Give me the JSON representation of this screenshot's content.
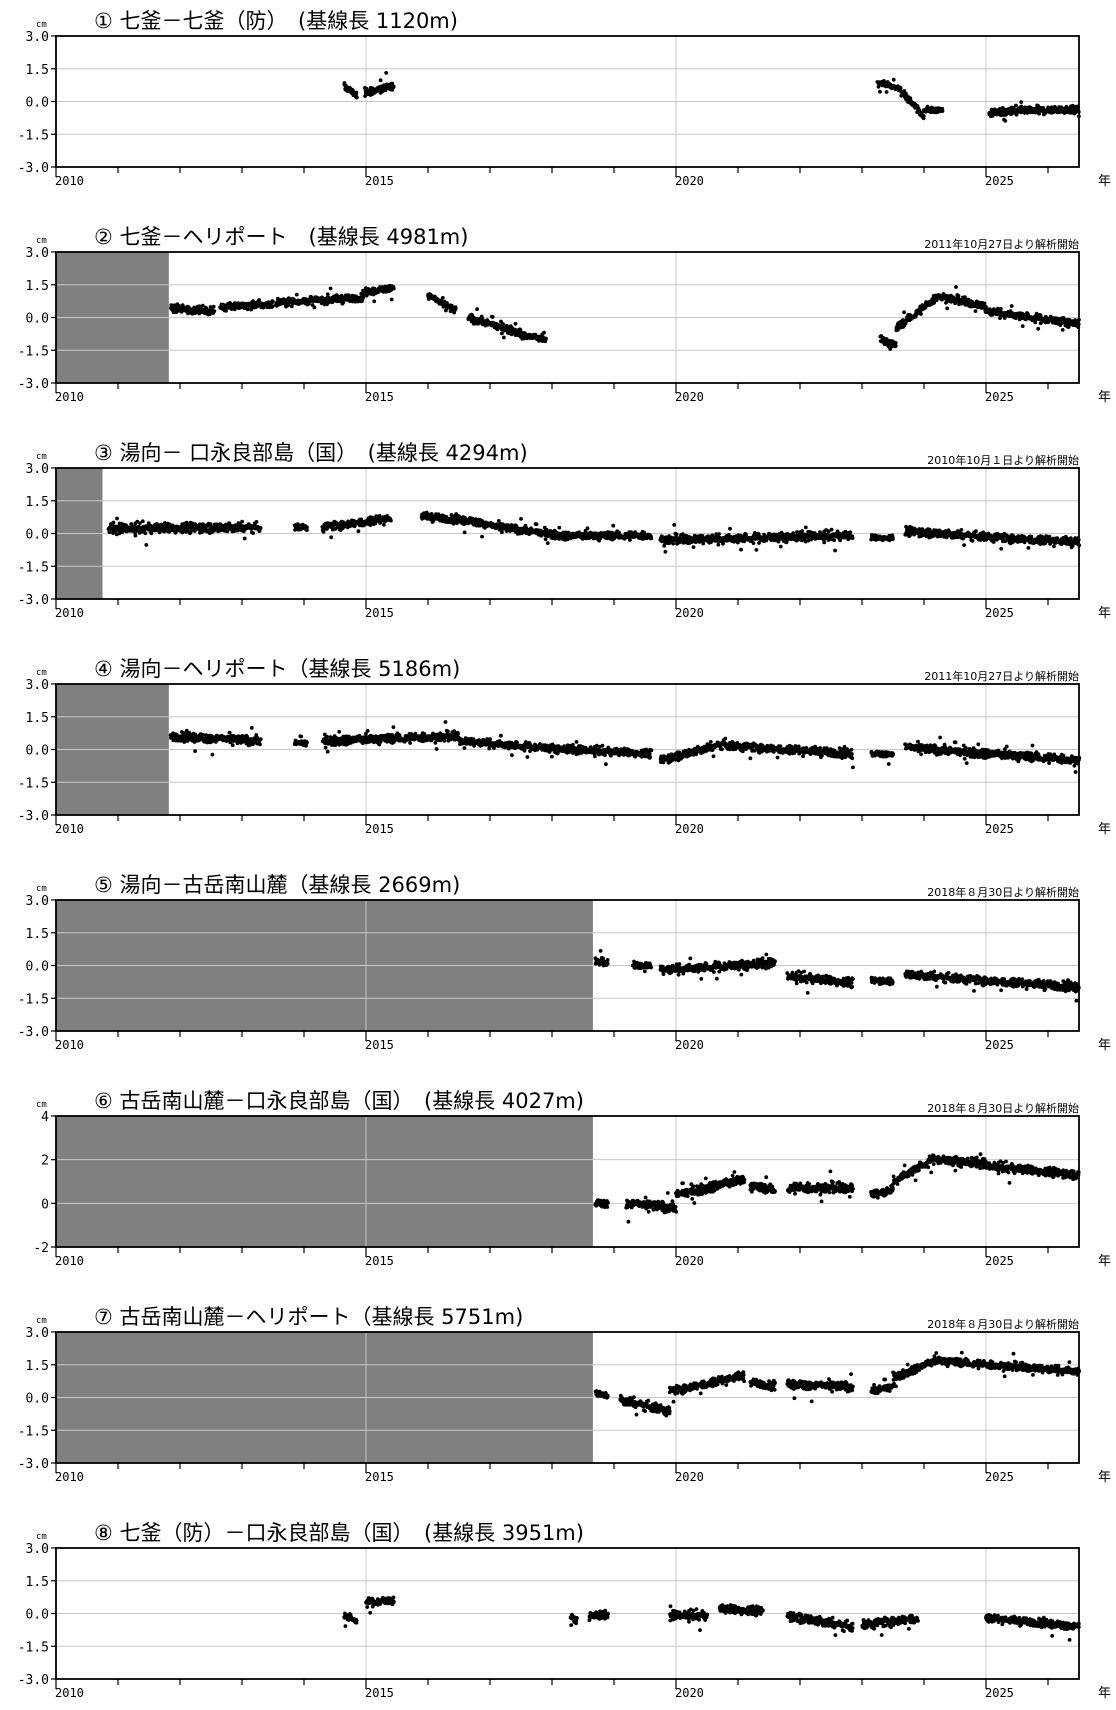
{
  "chart_data": [
    {
      "type": "scatter",
      "title": "① 七釜－七釜（防）　(基線長 1120m)",
      "note": "",
      "unit": "cm",
      "xlabel": "年",
      "x_ticks": [
        "2010",
        "2015",
        "2020",
        "2025"
      ],
      "xlim": [
        2010,
        2026.5
      ],
      "ylim": [
        -3.0,
        3.0
      ],
      "y_ticks": [
        "3.0",
        "1.5",
        "0.0",
        "-1.5",
        "-3.0"
      ],
      "shaded_until": null,
      "segments": [
        {
          "x": [
            2014.65,
            2014.85
          ],
          "y": [
            0.7,
            0.3
          ],
          "spread": 0.3
        },
        {
          "x": [
            2014.98,
            2015.45
          ],
          "y": [
            0.4,
            0.7
          ],
          "spread": 0.35
        },
        {
          "x": [
            2023.25,
            2023.6
          ],
          "y": [
            0.9,
            0.6
          ],
          "spread": 0.25
        },
        {
          "x": [
            2023.6,
            2024.0
          ],
          "y": [
            0.6,
            -0.7
          ],
          "spread": 0.3
        },
        {
          "x": [
            2024.0,
            2024.3
          ],
          "y": [
            -0.4,
            -0.4
          ],
          "spread": 0.25
        },
        {
          "x": [
            2025.05,
            2026.5
          ],
          "y": [
            -0.5,
            -0.35
          ],
          "spread": 0.35
        }
      ]
    },
    {
      "type": "scatter",
      "title": "② 七釜－ヘリポート　(基線長 4981m)",
      "note": "2011年10月27日より解析開始",
      "unit": "cm",
      "xlabel": "年",
      "x_ticks": [
        "2010",
        "2015",
        "2020",
        "2025"
      ],
      "xlim": [
        2010,
        2026.5
      ],
      "ylim": [
        -3.0,
        3.0
      ],
      "y_ticks": [
        "3.0",
        "1.5",
        "0.0",
        "-1.5",
        "-3.0"
      ],
      "shaded_until": 2011.82,
      "segments": [
        {
          "x": [
            2011.85,
            2012.55
          ],
          "y": [
            0.4,
            0.3
          ],
          "spread": 0.35
        },
        {
          "x": [
            2012.65,
            2013.5
          ],
          "y": [
            0.5,
            0.6
          ],
          "spread": 0.35
        },
        {
          "x": [
            2013.55,
            2014.95
          ],
          "y": [
            0.7,
            0.9
          ],
          "spread": 0.35
        },
        {
          "x": [
            2014.95,
            2015.45
          ],
          "y": [
            1.1,
            1.4
          ],
          "spread": 0.3
        },
        {
          "x": [
            2016.0,
            2016.45
          ],
          "y": [
            1.0,
            0.3
          ],
          "spread": 0.35
        },
        {
          "x": [
            2016.65,
            2017.5
          ],
          "y": [
            0.0,
            -0.7
          ],
          "spread": 0.35
        },
        {
          "x": [
            2017.5,
            2017.9
          ],
          "y": [
            -0.8,
            -1.0
          ],
          "spread": 0.3
        },
        {
          "x": [
            2023.3,
            2023.55
          ],
          "y": [
            -1.0,
            -1.3
          ],
          "spread": 0.4
        },
        {
          "x": [
            2023.55,
            2024.2
          ],
          "y": [
            -0.5,
            0.9
          ],
          "spread": 0.35
        },
        {
          "x": [
            2024.2,
            2025.0
          ],
          "y": [
            1.0,
            0.5
          ],
          "spread": 0.35
        },
        {
          "x": [
            2025.0,
            2026.5
          ],
          "y": [
            0.3,
            -0.3
          ],
          "spread": 0.35
        }
      ]
    },
    {
      "type": "scatter",
      "title": "③ 湯向－ 口永良部島（国）　(基線長 4294m)",
      "note": "2010年10月１日より解析開始",
      "unit": "cm",
      "xlabel": "年",
      "x_ticks": [
        "2010",
        "2015",
        "2020",
        "2025"
      ],
      "xlim": [
        2010,
        2026.5
      ],
      "ylim": [
        -3.0,
        3.0
      ],
      "y_ticks": [
        "3.0",
        "1.5",
        "0.0",
        "-1.5",
        "-3.0"
      ],
      "shaded_until": 2010.75,
      "segments": [
        {
          "x": [
            2010.85,
            2013.3
          ],
          "y": [
            0.2,
            0.3
          ],
          "spread": 0.45
        },
        {
          "x": [
            2013.85,
            2014.05
          ],
          "y": [
            0.3,
            0.3
          ],
          "spread": 0.3
        },
        {
          "x": [
            2014.3,
            2015.4
          ],
          "y": [
            0.3,
            0.7
          ],
          "spread": 0.4
        },
        {
          "x": [
            2015.9,
            2016.9
          ],
          "y": [
            0.8,
            0.5
          ],
          "spread": 0.35
        },
        {
          "x": [
            2016.9,
            2018.2
          ],
          "y": [
            0.4,
            -0.1
          ],
          "spread": 0.35
        },
        {
          "x": [
            2018.2,
            2019.6
          ],
          "y": [
            -0.1,
            -0.1
          ],
          "spread": 0.35
        },
        {
          "x": [
            2019.75,
            2022.85
          ],
          "y": [
            -0.3,
            -0.1
          ],
          "spread": 0.4
        },
        {
          "x": [
            2023.15,
            2023.5
          ],
          "y": [
            -0.2,
            -0.2
          ],
          "spread": 0.25
        },
        {
          "x": [
            2023.7,
            2026.5
          ],
          "y": [
            0.1,
            -0.4
          ],
          "spread": 0.4
        }
      ]
    },
    {
      "type": "scatter",
      "title": "④ 湯向－ヘリポート（基線長 5186m)",
      "note": "2011年10月27日より解析開始",
      "unit": "cm",
      "xlabel": "年",
      "x_ticks": [
        "2010",
        "2015",
        "2020",
        "2025"
      ],
      "xlim": [
        2010,
        2026.5
      ],
      "ylim": [
        -3.0,
        3.0
      ],
      "y_ticks": [
        "3.0",
        "1.5",
        "0.0",
        "-1.5",
        "-3.0"
      ],
      "shaded_until": 2011.82,
      "segments": [
        {
          "x": [
            2011.85,
            2013.3
          ],
          "y": [
            0.6,
            0.4
          ],
          "spread": 0.4
        },
        {
          "x": [
            2013.85,
            2014.05
          ],
          "y": [
            0.3,
            0.3
          ],
          "spread": 0.3
        },
        {
          "x": [
            2014.3,
            2016.5
          ],
          "y": [
            0.4,
            0.6
          ],
          "spread": 0.4
        },
        {
          "x": [
            2016.5,
            2018.2
          ],
          "y": [
            0.4,
            0.0
          ],
          "spread": 0.35
        },
        {
          "x": [
            2018.2,
            2019.6
          ],
          "y": [
            0.0,
            -0.2
          ],
          "spread": 0.35
        },
        {
          "x": [
            2019.75,
            2020.8
          ],
          "y": [
            -0.5,
            0.3
          ],
          "spread": 0.4
        },
        {
          "x": [
            2020.8,
            2022.85
          ],
          "y": [
            0.2,
            -0.2
          ],
          "spread": 0.4
        },
        {
          "x": [
            2023.15,
            2023.5
          ],
          "y": [
            -0.2,
            -0.2
          ],
          "spread": 0.25
        },
        {
          "x": [
            2023.7,
            2026.5
          ],
          "y": [
            0.1,
            -0.5
          ],
          "spread": 0.4
        }
      ]
    },
    {
      "type": "scatter",
      "title": "⑤ 湯向－古岳南山麓（基線長 2669m)",
      "note": "2018年８月30日より解析開始",
      "unit": "cm",
      "xlabel": "年",
      "x_ticks": [
        "2010",
        "2015",
        "2020",
        "2025"
      ],
      "xlim": [
        2010,
        2026.5
      ],
      "ylim": [
        -3.0,
        3.0
      ],
      "y_ticks": [
        "3.0",
        "1.5",
        "0.0",
        "-1.5",
        "-3.0"
      ],
      "shaded_until": 2018.66,
      "segments": [
        {
          "x": [
            2018.7,
            2018.9
          ],
          "y": [
            0.2,
            0.1
          ],
          "spread": 0.3
        },
        {
          "x": [
            2019.3,
            2019.6
          ],
          "y": [
            0.0,
            0.0
          ],
          "spread": 0.3
        },
        {
          "x": [
            2019.75,
            2021.6
          ],
          "y": [
            -0.2,
            0.1
          ],
          "spread": 0.4
        },
        {
          "x": [
            2021.8,
            2022.85
          ],
          "y": [
            -0.5,
            -0.8
          ],
          "spread": 0.4
        },
        {
          "x": [
            2023.15,
            2023.5
          ],
          "y": [
            -0.7,
            -0.7
          ],
          "spread": 0.3
        },
        {
          "x": [
            2023.7,
            2026.5
          ],
          "y": [
            -0.4,
            -1.0
          ],
          "spread": 0.4
        }
      ]
    },
    {
      "type": "scatter",
      "title": "⑥ 古岳南山麓－口永良部島（国）　(基線長 4027m)",
      "note": "2018年８月30日より解析開始",
      "unit": "cm",
      "xlabel": "年",
      "x_ticks": [
        "2010",
        "2015",
        "2020",
        "2025"
      ],
      "xlim": [
        2010,
        2026.5
      ],
      "ylim": [
        -2,
        4
      ],
      "y_ticks": [
        "4",
        "2",
        "0",
        "-2"
      ],
      "shaded_until": 2018.66,
      "segments": [
        {
          "x": [
            2018.7,
            2018.9
          ],
          "y": [
            0.0,
            0.0
          ],
          "spread": 0.35
        },
        {
          "x": [
            2019.2,
            2020.0
          ],
          "y": [
            0.0,
            -0.2
          ],
          "spread": 0.45
        },
        {
          "x": [
            2020.0,
            2021.1
          ],
          "y": [
            0.4,
            1.1
          ],
          "spread": 0.45
        },
        {
          "x": [
            2021.2,
            2021.6
          ],
          "y": [
            0.8,
            0.6
          ],
          "spread": 0.4
        },
        {
          "x": [
            2021.8,
            2022.85
          ],
          "y": [
            0.7,
            0.7
          ],
          "spread": 0.45
        },
        {
          "x": [
            2023.15,
            2023.5
          ],
          "y": [
            0.4,
            0.6
          ],
          "spread": 0.4
        },
        {
          "x": [
            2023.5,
            2024.2
          ],
          "y": [
            1.0,
            2.1
          ],
          "spread": 0.4
        },
        {
          "x": [
            2024.2,
            2025.0
          ],
          "y": [
            2.0,
            1.8
          ],
          "spread": 0.4
        },
        {
          "x": [
            2025.0,
            2026.5
          ],
          "y": [
            1.7,
            1.3
          ],
          "spread": 0.4
        }
      ]
    },
    {
      "type": "scatter",
      "title": "⑦ 古岳南山麓－ヘリポート（基線長 5751m)",
      "note": "2018年８月30日より解析開始",
      "unit": "cm",
      "xlabel": "年",
      "x_ticks": [
        "2010",
        "2015",
        "2020",
        "2025"
      ],
      "xlim": [
        2010,
        2026.5
      ],
      "ylim": [
        -3.0,
        3.0
      ],
      "y_ticks": [
        "3.0",
        "1.5",
        "0.0",
        "-1.5",
        "-3.0"
      ],
      "shaded_until": 2018.66,
      "segments": [
        {
          "x": [
            2018.7,
            2018.9
          ],
          "y": [
            0.2,
            0.1
          ],
          "spread": 0.3
        },
        {
          "x": [
            2019.1,
            2019.9
          ],
          "y": [
            -0.1,
            -0.6
          ],
          "spread": 0.45
        },
        {
          "x": [
            2019.9,
            2021.1
          ],
          "y": [
            0.3,
            1.0
          ],
          "spread": 0.4
        },
        {
          "x": [
            2021.2,
            2021.6
          ],
          "y": [
            0.7,
            0.5
          ],
          "spread": 0.35
        },
        {
          "x": [
            2021.8,
            2022.85
          ],
          "y": [
            0.6,
            0.5
          ],
          "spread": 0.4
        },
        {
          "x": [
            2023.15,
            2023.5
          ],
          "y": [
            0.3,
            0.5
          ],
          "spread": 0.4
        },
        {
          "x": [
            2023.5,
            2024.2
          ],
          "y": [
            0.9,
            1.7
          ],
          "spread": 0.35
        },
        {
          "x": [
            2024.2,
            2025.0
          ],
          "y": [
            1.7,
            1.5
          ],
          "spread": 0.35
        },
        {
          "x": [
            2025.0,
            2026.5
          ],
          "y": [
            1.5,
            1.2
          ],
          "spread": 0.35
        }
      ]
    },
    {
      "type": "scatter",
      "title": "⑧ 七釜（防）－口永良部島（国）　(基線長 3951m)",
      "note": "",
      "unit": "cm",
      "xlabel": "年",
      "x_ticks": [
        "2010",
        "2015",
        "2020",
        "2025"
      ],
      "xlim": [
        2010,
        2026.5
      ],
      "ylim": [
        -3.0,
        3.0
      ],
      "y_ticks": [
        "3.0",
        "1.5",
        "0.0",
        "-1.5",
        "-3.0"
      ],
      "shaded_until": null,
      "segments": [
        {
          "x": [
            2014.65,
            2014.85
          ],
          "y": [
            -0.1,
            -0.3
          ],
          "spread": 0.35
        },
        {
          "x": [
            2015.0,
            2015.45
          ],
          "y": [
            0.5,
            0.6
          ],
          "spread": 0.35
        },
        {
          "x": [
            2018.3,
            2018.4
          ],
          "y": [
            -0.2,
            -0.3
          ],
          "spread": 0.3
        },
        {
          "x": [
            2018.6,
            2018.9
          ],
          "y": [
            -0.1,
            -0.1
          ],
          "spread": 0.35
        },
        {
          "x": [
            2019.9,
            2020.5
          ],
          "y": [
            -0.1,
            -0.1
          ],
          "spread": 0.4
        },
        {
          "x": [
            2020.7,
            2021.4
          ],
          "y": [
            0.2,
            0.1
          ],
          "spread": 0.4
        },
        {
          "x": [
            2021.8,
            2022.85
          ],
          "y": [
            -0.1,
            -0.6
          ],
          "spread": 0.45
        },
        {
          "x": [
            2023.0,
            2023.9
          ],
          "y": [
            -0.5,
            -0.2
          ],
          "spread": 0.45
        },
        {
          "x": [
            2025.0,
            2026.5
          ],
          "y": [
            -0.2,
            -0.6
          ],
          "spread": 0.35
        }
      ]
    }
  ]
}
